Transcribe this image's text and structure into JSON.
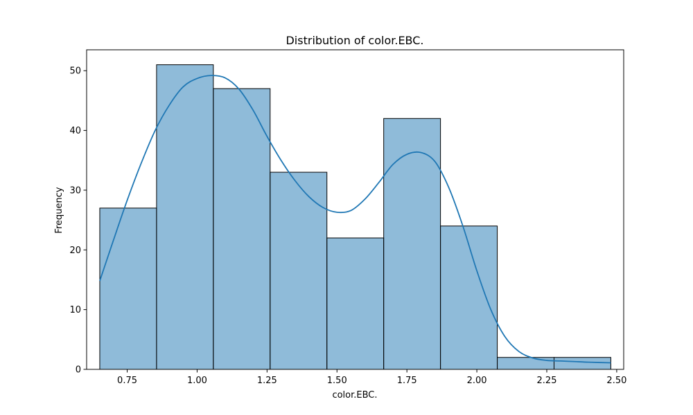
{
  "chart_data": {
    "type": "bar",
    "subtype": "histogram_with_kde",
    "title": "Distribution of color.EBC.",
    "xlabel": "color.EBC.",
    "ylabel": "Frequency",
    "xlim": [
      0.605,
      2.525
    ],
    "ylim": [
      0,
      53.5
    ],
    "x_ticks": [
      0.75,
      1.0,
      1.25,
      1.5,
      1.75,
      2.0,
      2.25,
      2.5
    ],
    "x_tick_labels": [
      "0.75",
      "1.00",
      "1.25",
      "1.50",
      "1.75",
      "2.00",
      "2.25",
      "2.50"
    ],
    "y_ticks": [
      0,
      10,
      20,
      30,
      40,
      50
    ],
    "y_tick_labels": [
      "0",
      "10",
      "20",
      "30",
      "40",
      "50"
    ],
    "bins": [
      {
        "x0": 0.652,
        "x1": 0.855,
        "count": 27
      },
      {
        "x0": 0.855,
        "x1": 1.058,
        "count": 51
      },
      {
        "x0": 1.058,
        "x1": 1.261,
        "count": 47
      },
      {
        "x0": 1.261,
        "x1": 1.464,
        "count": 33
      },
      {
        "x0": 1.464,
        "x1": 1.667,
        "count": 22
      },
      {
        "x0": 1.667,
        "x1": 1.87,
        "count": 42
      },
      {
        "x0": 1.87,
        "x1": 2.073,
        "count": 24
      },
      {
        "x0": 2.073,
        "x1": 2.276,
        "count": 2
      },
      {
        "x0": 2.276,
        "x1": 2.479,
        "count": 2
      }
    ],
    "kde": {
      "x": [
        0.652,
        0.7,
        0.75,
        0.8,
        0.85,
        0.9,
        0.95,
        1.0,
        1.05,
        1.1,
        1.15,
        1.2,
        1.25,
        1.3,
        1.35,
        1.4,
        1.45,
        1.5,
        1.55,
        1.6,
        1.65,
        1.7,
        1.75,
        1.8,
        1.85,
        1.9,
        1.95,
        2.0,
        2.05,
        2.1,
        2.15,
        2.2,
        2.25,
        2.3,
        2.35,
        2.4,
        2.479
      ],
      "y": [
        14.8,
        21.5,
        28.3,
        34.5,
        40.0,
        44.2,
        47.3,
        48.7,
        49.2,
        48.8,
        46.9,
        43.4,
        39.0,
        35.0,
        31.6,
        28.9,
        27.1,
        26.3,
        26.6,
        28.5,
        31.3,
        34.3,
        36.0,
        36.3,
        34.8,
        30.4,
        24.0,
        16.5,
        10.0,
        5.5,
        3.0,
        1.9,
        1.5,
        1.4,
        1.3,
        1.2,
        1.1
      ]
    },
    "colors": {
      "bar_fill": "#1f77b4",
      "bar_fill_opacity": 0.5,
      "bar_edge": "#000000",
      "kde_line": "#1f77b4"
    },
    "grid": false,
    "legend": false
  }
}
